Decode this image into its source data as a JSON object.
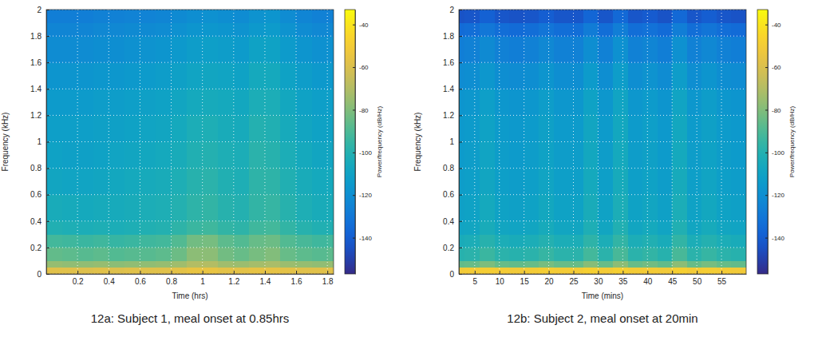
{
  "chart_data": [
    {
      "type": "heatmap",
      "caption": "12a: Subject 1, meal onset at 0.85hrs",
      "x_label": "Time (hrs)",
      "y_label": "Frequency (kHz)",
      "xlim": [
        0,
        1.84
      ],
      "ylim": [
        0,
        2
      ],
      "xticks": [
        0.2,
        0.4,
        0.6,
        0.8,
        1,
        1.2,
        1.4,
        1.6,
        1.8
      ],
      "yticks": [
        0,
        0.2,
        0.4,
        0.6,
        0.8,
        1,
        1.2,
        1.4,
        1.6,
        1.8,
        2
      ],
      "grid": true,
      "x_bins": [
        0,
        0.1,
        0.2,
        0.3,
        0.4,
        0.5,
        0.6,
        0.7,
        0.8,
        0.9,
        1,
        1.1,
        1.2,
        1.3,
        1.4,
        1.5,
        1.6,
        1.7,
        1.8,
        1.84
      ],
      "y_bins": [
        0,
        0.05,
        0.1,
        0.2,
        0.3,
        0.4,
        0.6,
        0.8,
        1,
        1.2,
        1.4,
        1.6,
        1.8,
        1.9,
        2
      ],
      "cells": [
        [
          -58,
          -58,
          -59,
          -58,
          -59,
          -58,
          -58,
          -58,
          -57,
          -55,
          -55,
          -57,
          -57,
          -56,
          -56,
          -57,
          -58,
          -58,
          -58
        ],
        [
          -76,
          -77,
          -77,
          -76,
          -78,
          -77,
          -77,
          -76,
          -74,
          -70,
          -70,
          -74,
          -75,
          -73,
          -72,
          -75,
          -76,
          -77,
          -76
        ],
        [
          -86,
          -87,
          -88,
          -87,
          -89,
          -88,
          -88,
          -87,
          -84,
          -78,
          -78,
          -83,
          -85,
          -82,
          -80,
          -85,
          -87,
          -88,
          -87
        ],
        [
          -92,
          -93,
          -94,
          -93,
          -95,
          -94,
          -93,
          -92,
          -89,
          -83,
          -82,
          -87,
          -89,
          -85,
          -84,
          -89,
          -91,
          -93,
          -92
        ],
        [
          -101,
          -102,
          -103,
          -102,
          -103,
          -102,
          -101,
          -100,
          -97,
          -94,
          -93,
          -96,
          -97,
          -93,
          -92,
          -96,
          -99,
          -101,
          -101
        ],
        [
          -104,
          -105,
          -106,
          -105,
          -105,
          -104,
          -103,
          -102,
          -100,
          -97,
          -96,
          -99,
          -100,
          -96,
          -95,
          -99,
          -102,
          -104,
          -104
        ],
        [
          -108,
          -109,
          -109,
          -108,
          -107,
          -106,
          -105,
          -104,
          -102,
          -99,
          -98,
          -101,
          -102,
          -97,
          -97,
          -101,
          -104,
          -106,
          -106
        ],
        [
          -110,
          -111,
          -111,
          -110,
          -109,
          -108,
          -107,
          -106,
          -104,
          -101,
          -100,
          -102,
          -103,
          -98,
          -99,
          -103,
          -106,
          -108,
          -108
        ],
        [
          -112,
          -112,
          -112,
          -111,
          -111,
          -110,
          -109,
          -108,
          -106,
          -103,
          -102,
          -104,
          -105,
          -100,
          -101,
          -105,
          -108,
          -110,
          -110
        ],
        [
          -114,
          -114,
          -114,
          -113,
          -113,
          -112,
          -111,
          -110,
          -108,
          -106,
          -105,
          -106,
          -107,
          -103,
          -103,
          -107,
          -110,
          -112,
          -112
        ],
        [
          -117,
          -117,
          -117,
          -116,
          -116,
          -115,
          -114,
          -113,
          -111,
          -109,
          -108,
          -109,
          -110,
          -106,
          -106,
          -110,
          -113,
          -115,
          -115
        ],
        [
          -121,
          -121,
          -121,
          -120,
          -120,
          -119,
          -118,
          -117,
          -115,
          -113,
          -112,
          -113,
          -114,
          -110,
          -110,
          -114,
          -117,
          -119,
          -119
        ],
        [
          -124,
          -124,
          -124,
          -123,
          -123,
          -122,
          -122,
          -121,
          -119,
          -117,
          -116,
          -117,
          -118,
          -115,
          -114,
          -118,
          -121,
          -123,
          -123
        ],
        [
          -127,
          -127,
          -127,
          -126,
          -126,
          -125,
          -125,
          -124,
          -122,
          -120,
          -119,
          -120,
          -121,
          -118,
          -117,
          -121,
          -124,
          -126,
          -126
        ]
      ],
      "colorbar": {
        "range": [
          -157,
          -33
        ],
        "ticks": [
          -40,
          -60,
          -80,
          -100,
          -120,
          -140
        ],
        "label": "Power/frequency (dB/Hz)"
      }
    },
    {
      "type": "heatmap",
      "caption": "12b: Subject 2, meal onset at 20min",
      "x_label": "Time (mins)",
      "y_label": "Frequency (kHz)",
      "xlim": [
        1.8,
        60
      ],
      "ylim": [
        0,
        2
      ],
      "xticks": [
        5,
        10,
        15,
        20,
        25,
        30,
        35,
        40,
        45,
        50,
        55
      ],
      "yticks": [
        0,
        0.2,
        0.4,
        0.6,
        0.8,
        1,
        1.2,
        1.4,
        1.6,
        1.8,
        2
      ],
      "grid": true,
      "x_bins": [
        1.8,
        3,
        6,
        9,
        12,
        15,
        18,
        21,
        24,
        27,
        30,
        33,
        36,
        39,
        42,
        45,
        48,
        51,
        54,
        57,
        60
      ],
      "y_bins": [
        0,
        0.05,
        0.1,
        0.2,
        0.3,
        0.4,
        0.6,
        0.8,
        1,
        1.2,
        1.4,
        1.6,
        1.8,
        1.9,
        2
      ],
      "cells": [
        [
          -51,
          -50,
          -49,
          -50,
          -51,
          -50,
          -49,
          -50,
          -50,
          -48,
          -50,
          -48,
          -50,
          -50,
          -51,
          -48,
          -50,
          -49,
          -50,
          -51
        ],
        [
          -86,
          -85,
          -81,
          -85,
          -86,
          -85,
          -82,
          -85,
          -85,
          -79,
          -85,
          -78,
          -85,
          -83,
          -86,
          -78,
          -85,
          -82,
          -85,
          -86
        ],
        [
          -99,
          -98,
          -94,
          -98,
          -99,
          -98,
          -95,
          -98,
          -98,
          -92,
          -98,
          -91,
          -98,
          -96,
          -99,
          -91,
          -98,
          -95,
          -98,
          -99
        ],
        [
          -104,
          -103,
          -99,
          -103,
          -104,
          -103,
          -100,
          -103,
          -103,
          -97,
          -103,
          -96,
          -103,
          -101,
          -104,
          -96,
          -103,
          -100,
          -103,
          -104
        ],
        [
          -109,
          -108,
          -104,
          -108,
          -109,
          -108,
          -105,
          -108,
          -108,
          -102,
          -108,
          -101,
          -108,
          -106,
          -109,
          -101,
          -108,
          -105,
          -108,
          -109
        ],
        [
          -111,
          -110,
          -106,
          -110,
          -111,
          -110,
          -107,
          -110,
          -110,
          -104,
          -110,
          -103,
          -110,
          -108,
          -111,
          -103,
          -110,
          -107,
          -110,
          -111
        ],
        [
          -113,
          -112,
          -108,
          -112,
          -113,
          -112,
          -109,
          -112,
          -112,
          -106,
          -112,
          -105,
          -112,
          -110,
          -113,
          -105,
          -112,
          -109,
          -112,
          -113
        ],
        [
          -114,
          -113,
          -109,
          -113,
          -114,
          -113,
          -110,
          -113,
          -113,
          -107,
          -113,
          -106,
          -113,
          -111,
          -114,
          -106,
          -113,
          -110,
          -113,
          -114
        ],
        [
          -115,
          -114,
          -110,
          -114,
          -115,
          -114,
          -111,
          -114,
          -114,
          -108,
          -114,
          -107,
          -114,
          -112,
          -115,
          -107,
          -114,
          -111,
          -114,
          -115
        ],
        [
          -117,
          -116,
          -112,
          -116,
          -117,
          -116,
          -113,
          -116,
          -116,
          -110,
          -116,
          -109,
          -116,
          -114,
          -117,
          -109,
          -116,
          -113,
          -116,
          -117
        ],
        [
          -121,
          -120,
          -116,
          -120,
          -121,
          -120,
          -117,
          -120,
          -120,
          -114,
          -120,
          -113,
          -120,
          -118,
          -121,
          -113,
          -120,
          -117,
          -120,
          -121
        ],
        [
          -127,
          -126,
          -122,
          -126,
          -127,
          -126,
          -123,
          -126,
          -126,
          -120,
          -126,
          -119,
          -126,
          -124,
          -127,
          -119,
          -126,
          -123,
          -126,
          -127
        ],
        [
          -135,
          -134,
          -130,
          -134,
          -135,
          -134,
          -131,
          -134,
          -134,
          -128,
          -134,
          -127,
          -134,
          -132,
          -135,
          -127,
          -134,
          -131,
          -134,
          -135
        ],
        [
          -144,
          -143,
          -139,
          -143,
          -144,
          -143,
          -140,
          -143,
          -143,
          -137,
          -143,
          -136,
          -143,
          -141,
          -144,
          -136,
          -143,
          -140,
          -143,
          -144
        ]
      ],
      "colorbar": {
        "range": [
          -157,
          -33
        ],
        "ticks": [
          -40,
          -60,
          -80,
          -100,
          -120,
          -140
        ],
        "label": "Power/frequency (dB/Hz)"
      }
    }
  ]
}
